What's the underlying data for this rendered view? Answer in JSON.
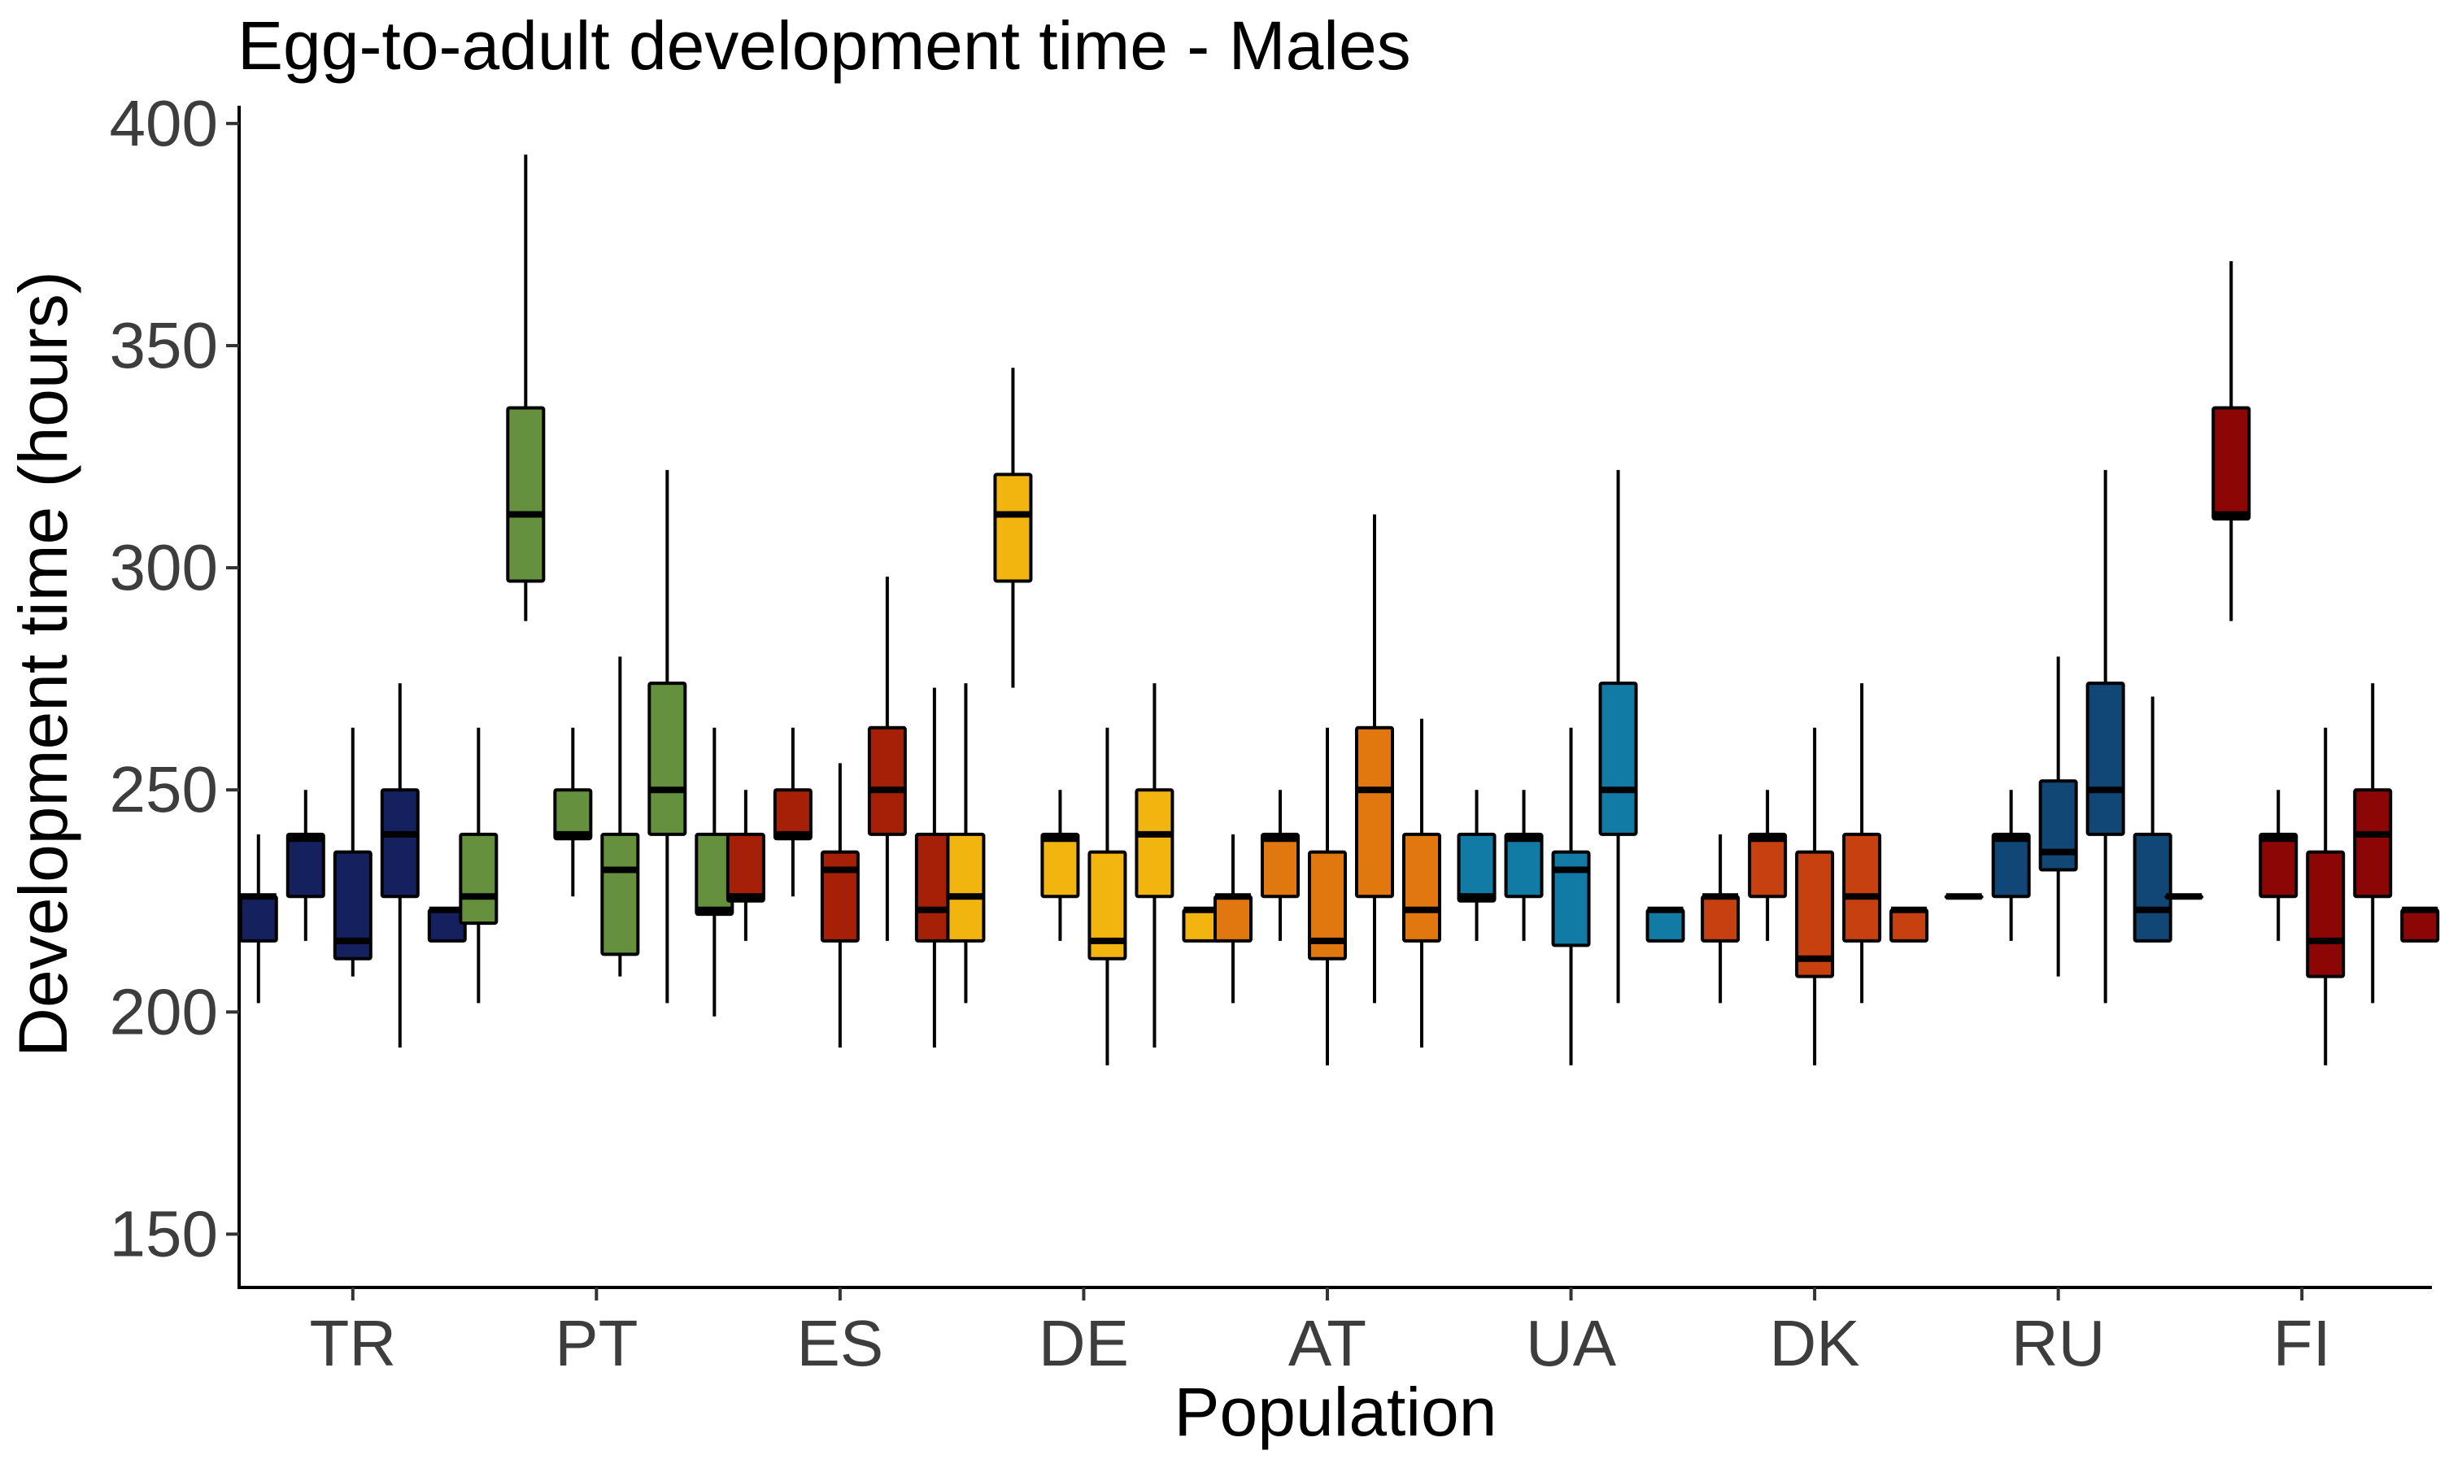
{
  "chart_data": {
    "type": "boxplot",
    "title": "Egg-to-adult development time - Males",
    "xlabel": "Population",
    "ylabel": "Development time (hours)",
    "ylim": [
      138,
      404
    ],
    "yticks": [
      150,
      200,
      250,
      300,
      350,
      400
    ],
    "grid": false,
    "legend": "none",
    "categories": [
      {
        "name": "TR",
        "color": "#15215e",
        "boxes": [
          {
            "whisker_low": 202,
            "q1": 216,
            "median": 226,
            "q3": 226,
            "whisker_high": 240
          },
          {
            "whisker_low": 216,
            "q1": 226,
            "median": 239,
            "q3": 240,
            "whisker_high": 250
          },
          {
            "whisker_low": 208,
            "q1": 212,
            "median": 216,
            "q3": 236,
            "whisker_high": 264
          },
          {
            "whisker_low": 192,
            "q1": 226,
            "median": 240,
            "q3": 250,
            "whisker_high": 274
          },
          {
            "whisker_low": 216,
            "q1": 216,
            "median": 223,
            "q3": 223,
            "whisker_high": 223
          }
        ]
      },
      {
        "name": "PT",
        "color": "#65913f",
        "boxes": [
          {
            "whisker_low": 202,
            "q1": 220,
            "median": 226,
            "q3": 240,
            "whisker_high": 264
          },
          {
            "whisker_low": 288,
            "q1": 297,
            "median": 312,
            "q3": 336,
            "whisker_high": 393
          },
          {
            "whisker_low": 226,
            "q1": 239,
            "median": 240,
            "q3": 250,
            "whisker_high": 264
          },
          {
            "whisker_low": 208,
            "q1": 213,
            "median": 232,
            "q3": 240,
            "whisker_high": 280
          },
          {
            "whisker_low": 202,
            "q1": 240,
            "median": 250,
            "q3": 274,
            "whisker_high": 322
          },
          {
            "whisker_low": 199,
            "q1": 222,
            "median": 223,
            "q3": 240,
            "whisker_high": 264
          }
        ]
      },
      {
        "name": "ES",
        "color": "#a62008",
        "boxes": [
          {
            "whisker_low": 216,
            "q1": 225,
            "median": 226,
            "q3": 240,
            "whisker_high": 250
          },
          {
            "whisker_low": 226,
            "q1": 239,
            "median": 240,
            "q3": 250,
            "whisker_high": 264
          },
          {
            "whisker_low": 192,
            "q1": 216,
            "median": 232,
            "q3": 236,
            "whisker_high": 256
          },
          {
            "whisker_low": 216,
            "q1": 240,
            "median": 250,
            "q3": 264,
            "whisker_high": 298
          },
          {
            "whisker_low": 192,
            "q1": 216,
            "median": 223,
            "q3": 240,
            "whisker_high": 273
          }
        ]
      },
      {
        "name": "DE",
        "color": "#f2b40e",
        "boxes": [
          {
            "whisker_low": 202,
            "q1": 216,
            "median": 226,
            "q3": 240,
            "whisker_high": 274
          },
          {
            "whisker_low": 273,
            "q1": 297,
            "median": 312,
            "q3": 321,
            "whisker_high": 345
          },
          {
            "whisker_low": 216,
            "q1": 226,
            "median": 239,
            "q3": 240,
            "whisker_high": 250
          },
          {
            "whisker_low": 188,
            "q1": 212,
            "median": 216,
            "q3": 236,
            "whisker_high": 264
          },
          {
            "whisker_low": 192,
            "q1": 226,
            "median": 240,
            "q3": 250,
            "whisker_high": 274
          },
          {
            "whisker_low": 216,
            "q1": 216,
            "median": 223,
            "q3": 223,
            "whisker_high": 223
          }
        ]
      },
      {
        "name": "AT",
        "color": "#e0770f",
        "boxes": [
          {
            "whisker_low": 202,
            "q1": 216,
            "median": 226,
            "q3": 226,
            "whisker_high": 240
          },
          {
            "whisker_low": 216,
            "q1": 226,
            "median": 239,
            "q3": 240,
            "whisker_high": 250
          },
          {
            "whisker_low": 188,
            "q1": 212,
            "median": 216,
            "q3": 236,
            "whisker_high": 264
          },
          {
            "whisker_low": 202,
            "q1": 226,
            "median": 250,
            "q3": 264,
            "whisker_high": 312
          },
          {
            "whisker_low": 192,
            "q1": 216,
            "median": 223,
            "q3": 240,
            "whisker_high": 266
          }
        ]
      },
      {
        "name": "UA",
        "color": "#117aa5",
        "boxes": [
          {
            "whisker_low": 216,
            "q1": 225,
            "median": 226,
            "q3": 240,
            "whisker_high": 250
          },
          {
            "whisker_low": 216,
            "q1": 226,
            "median": 239,
            "q3": 240,
            "whisker_high": 250
          },
          {
            "whisker_low": 188,
            "q1": 215,
            "median": 232,
            "q3": 236,
            "whisker_high": 264
          },
          {
            "whisker_low": 202,
            "q1": 240,
            "median": 250,
            "q3": 274,
            "whisker_high": 322
          },
          {
            "whisker_low": 216,
            "q1": 216,
            "median": 223,
            "q3": 223,
            "whisker_high": 223
          }
        ]
      },
      {
        "name": "DK",
        "color": "#c7400f",
        "boxes": [
          {
            "whisker_low": 202,
            "q1": 216,
            "median": 226,
            "q3": 226,
            "whisker_high": 240
          },
          {
            "whisker_low": 216,
            "q1": 226,
            "median": 239,
            "q3": 240,
            "whisker_high": 250
          },
          {
            "whisker_low": 188,
            "q1": 208,
            "median": 212,
            "q3": 236,
            "whisker_high": 264
          },
          {
            "whisker_low": 202,
            "q1": 216,
            "median": 226,
            "q3": 240,
            "whisker_high": 274
          },
          {
            "whisker_low": 216,
            "q1": 216,
            "median": 223,
            "q3": 223,
            "whisker_high": 223
          }
        ]
      },
      {
        "name": "RU",
        "color": "#114777",
        "boxes": [
          {
            "whisker_low": 226,
            "q1": 226,
            "median": 226,
            "q3": 226,
            "whisker_high": 226
          },
          {
            "whisker_low": 216,
            "q1": 226,
            "median": 239,
            "q3": 240,
            "whisker_high": 250
          },
          {
            "whisker_low": 208,
            "q1": 232,
            "median": 236,
            "q3": 252,
            "whisker_high": 280
          },
          {
            "whisker_low": 202,
            "q1": 240,
            "median": 250,
            "q3": 274,
            "whisker_high": 322
          },
          {
            "whisker_low": 216,
            "q1": 216,
            "median": 223,
            "q3": 240,
            "whisker_high": 271
          }
        ]
      },
      {
        "name": "FI",
        "color": "#8c0606",
        "boxes": [
          {
            "whisker_low": 226,
            "q1": 226,
            "median": 226,
            "q3": 226,
            "whisker_high": 226
          },
          {
            "whisker_low": 288,
            "q1": 311,
            "median": 312,
            "q3": 336,
            "whisker_high": 369
          },
          {
            "whisker_low": 216,
            "q1": 226,
            "median": 239,
            "q3": 240,
            "whisker_high": 250
          },
          {
            "whisker_low": 188,
            "q1": 208,
            "median": 216,
            "q3": 236,
            "whisker_high": 264
          },
          {
            "whisker_low": 202,
            "q1": 226,
            "median": 240,
            "q3": 250,
            "whisker_high": 274
          },
          {
            "whisker_low": 216,
            "q1": 216,
            "median": 223,
            "q3": 223,
            "whisker_high": 223
          }
        ]
      }
    ]
  }
}
